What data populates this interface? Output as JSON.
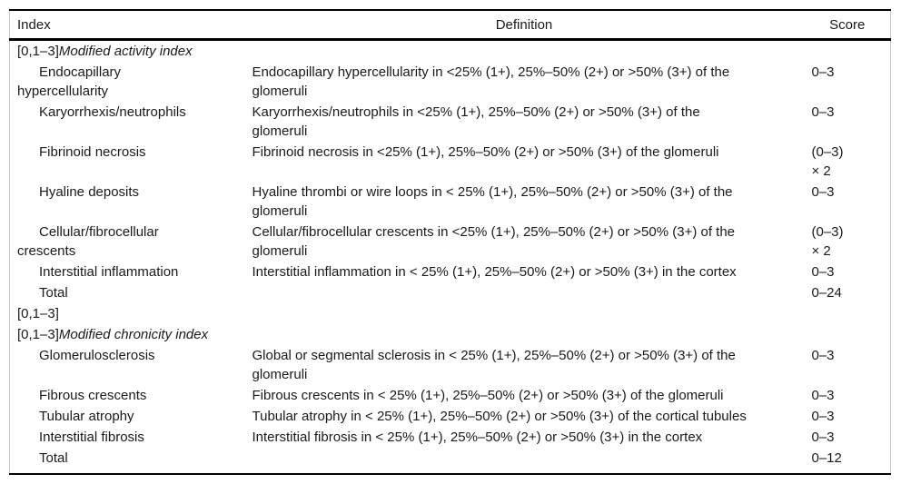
{
  "page": {
    "background": "#ffffff",
    "text_color": "#1a1a1a",
    "rule_color": "#000000",
    "side_border_color": "#c9c9c9"
  },
  "table": {
    "headers": {
      "index": "Index",
      "definition": "Definition",
      "score": "Score"
    },
    "rows": [
      {
        "type": "section",
        "prefix": "[0,1–3]",
        "title": "Modified activity index",
        "definition": "",
        "score": ""
      },
      {
        "type": "item",
        "index": "Endocapillary hypercellularity",
        "definition": "Endocapillary hypercellularity in <25% (1+), 25%–50% (2+) or >50% (3+) of the glomeruli",
        "score": "0–3"
      },
      {
        "type": "item",
        "index": "Karyorrhexis/neutrophils",
        "definition": "Karyorrhexis/neutrophils in <25% (1+), 25%–50% (2+) or >50% (3+) of the glomeruli",
        "score": "0–3"
      },
      {
        "type": "item",
        "index": "Fibrinoid necrosis",
        "definition": "Fibrinoid necrosis in <25% (1+), 25%–50% (2+) or >50% (3+) of the glomeruli",
        "score": "(0–3) × 2"
      },
      {
        "type": "item",
        "index": "Hyaline deposits",
        "definition": "Hyaline thrombi or wire loops in < 25% (1+), 25%–50% (2+) or >50% (3+) of the glomeruli",
        "score": "0–3"
      },
      {
        "type": "item",
        "index": "Cellular/fibrocellular crescents",
        "definition": "Cellular/fibrocellular crescents in <25% (1+), 25%–50% (2+) or >50% (3+) of the glomeruli",
        "score": "(0–3) × 2"
      },
      {
        "type": "item",
        "index": "Interstitial inflammation",
        "definition": "Interstitial inflammation in < 25% (1+), 25%–50% (2+) or >50% (3+) in the cortex",
        "score": "0–3"
      },
      {
        "type": "item",
        "index": "Total",
        "definition": "",
        "score": "0–24"
      },
      {
        "type": "plain",
        "index": "[0,1–3]",
        "definition": "",
        "score": ""
      },
      {
        "type": "section",
        "prefix": "[0,1–3]",
        "title": "Modified chronicity index",
        "definition": "",
        "score": ""
      },
      {
        "type": "item",
        "index": "Glomerulosclerosis",
        "definition": "Global or segmental sclerosis in < 25% (1+), 25%–50% (2+) or >50% (3+) of the glomeruli",
        "score": "0–3"
      },
      {
        "type": "item",
        "index": "Fibrous crescents",
        "definition": "Fibrous crescents in < 25% (1+), 25%–50% (2+) or >50% (3+) of the glomeruli",
        "score": "0–3"
      },
      {
        "type": "item",
        "index": "Tubular atrophy",
        "definition": "Tubular atrophy in < 25% (1+), 25%–50% (2+) or >50% (3+) of the cortical tubules",
        "score": "0–3"
      },
      {
        "type": "item",
        "index": "Interstitial fibrosis",
        "definition": "Interstitial fibrosis in < 25% (1+), 25%–50% (2+) or >50% (3+) in the cortex",
        "score": "0–3"
      },
      {
        "type": "item",
        "index": "Total",
        "definition": "",
        "score": "0–12"
      }
    ]
  }
}
